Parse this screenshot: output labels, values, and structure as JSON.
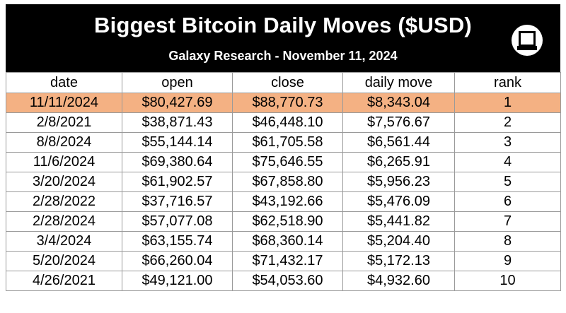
{
  "chart_data": {
    "type": "table",
    "title": "Biggest Bitcoin Daily Moves ($USD)",
    "subtitle": "Galaxy Research - November 11, 2024",
    "columns": [
      "date",
      "open",
      "close",
      "daily move",
      "rank"
    ],
    "rows": [
      [
        "11/11/2024",
        "$80,427.69",
        "$88,770.73",
        "$8,343.04",
        "1"
      ],
      [
        "2/8/2021",
        "$38,871.43",
        "$46,448.10",
        "$7,576.67",
        "2"
      ],
      [
        "8/8/2024",
        "$55,144.14",
        "$61,705.58",
        "$6,561.44",
        "3"
      ],
      [
        "11/6/2024",
        "$69,380.64",
        "$75,646.55",
        "$6,265.91",
        "4"
      ],
      [
        "3/20/2024",
        "$61,902.57",
        "$67,858.80",
        "$5,956.23",
        "5"
      ],
      [
        "2/28/2022",
        "$37,716.57",
        "$43,192.66",
        "$5,476.09",
        "6"
      ],
      [
        "2/28/2024",
        "$57,077.08",
        "$62,518.90",
        "$5,441.82",
        "7"
      ],
      [
        "3/4/2024",
        "$63,155.74",
        "$68,360.14",
        "$5,204.40",
        "8"
      ],
      [
        "5/20/2024",
        "$66,260.04",
        "$71,432.17",
        "$5,172.13",
        "9"
      ],
      [
        "4/26/2021",
        "$49,121.00",
        "$54,053.60",
        "$4,932.60",
        "10"
      ]
    ],
    "highlight_row": 0,
    "highlight_color": "#f4b183",
    "header_background": "#000000",
    "header_text_color": "#ffffff",
    "logo_icon": "galaxy-logo-icon"
  }
}
